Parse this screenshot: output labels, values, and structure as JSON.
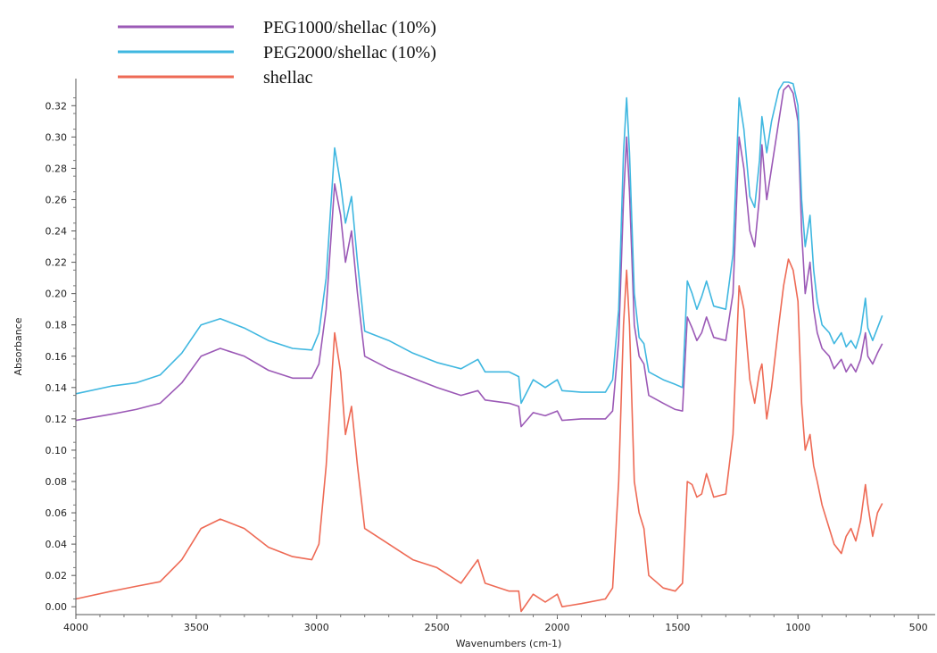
{
  "chart_data": {
    "type": "line",
    "xlabel": "Wavenumbers (cm-1)",
    "ylabel": "Absorbance",
    "xlim": [
      4000,
      430
    ],
    "ylim": [
      -0.005,
      0.335
    ],
    "x_reversed": true,
    "grid": false,
    "legend_position": "top-left",
    "x_ticks": [
      4000,
      3500,
      3000,
      2500,
      2000,
      1500,
      1000,
      500
    ],
    "y_ticks": [
      0.0,
      0.02,
      0.04,
      0.06,
      0.08,
      0.1,
      0.12,
      0.14,
      0.16,
      0.18,
      0.2,
      0.22,
      0.24,
      0.26,
      0.28,
      0.3,
      0.32
    ],
    "series": [
      {
        "name": "PEG1000/shellac (10%)",
        "color": "#9b59b6",
        "points": [
          [
            4000,
            0.119
          ],
          [
            3850,
            0.123
          ],
          [
            3750,
            0.126
          ],
          [
            3650,
            0.13
          ],
          [
            3560,
            0.143
          ],
          [
            3480,
            0.16
          ],
          [
            3400,
            0.165
          ],
          [
            3300,
            0.16
          ],
          [
            3200,
            0.151
          ],
          [
            3100,
            0.146
          ],
          [
            3020,
            0.146
          ],
          [
            2990,
            0.155
          ],
          [
            2960,
            0.19
          ],
          [
            2925,
            0.27
          ],
          [
            2900,
            0.25
          ],
          [
            2880,
            0.22
          ],
          [
            2855,
            0.24
          ],
          [
            2830,
            0.2
          ],
          [
            2800,
            0.16
          ],
          [
            2700,
            0.152
          ],
          [
            2600,
            0.146
          ],
          [
            2500,
            0.14
          ],
          [
            2400,
            0.135
          ],
          [
            2330,
            0.138
          ],
          [
            2300,
            0.132
          ],
          [
            2200,
            0.13
          ],
          [
            2160,
            0.128
          ],
          [
            2150,
            0.115
          ],
          [
            2100,
            0.124
          ],
          [
            2050,
            0.122
          ],
          [
            2000,
            0.125
          ],
          [
            1980,
            0.119
          ],
          [
            1900,
            0.12
          ],
          [
            1800,
            0.12
          ],
          [
            1770,
            0.125
          ],
          [
            1745,
            0.17
          ],
          [
            1725,
            0.26
          ],
          [
            1712,
            0.3
          ],
          [
            1700,
            0.265
          ],
          [
            1680,
            0.18
          ],
          [
            1660,
            0.16
          ],
          [
            1640,
            0.155
          ],
          [
            1620,
            0.135
          ],
          [
            1560,
            0.13
          ],
          [
            1510,
            0.126
          ],
          [
            1480,
            0.125
          ],
          [
            1460,
            0.185
          ],
          [
            1440,
            0.178
          ],
          [
            1420,
            0.17
          ],
          [
            1400,
            0.175
          ],
          [
            1380,
            0.185
          ],
          [
            1350,
            0.172
          ],
          [
            1300,
            0.17
          ],
          [
            1270,
            0.2
          ],
          [
            1245,
            0.3
          ],
          [
            1225,
            0.28
          ],
          [
            1200,
            0.24
          ],
          [
            1180,
            0.23
          ],
          [
            1160,
            0.262
          ],
          [
            1150,
            0.295
          ],
          [
            1130,
            0.26
          ],
          [
            1110,
            0.28
          ],
          [
            1080,
            0.31
          ],
          [
            1060,
            0.33
          ],
          [
            1040,
            0.333
          ],
          [
            1020,
            0.328
          ],
          [
            1000,
            0.31
          ],
          [
            985,
            0.24
          ],
          [
            970,
            0.2
          ],
          [
            950,
            0.22
          ],
          [
            935,
            0.19
          ],
          [
            920,
            0.175
          ],
          [
            900,
            0.165
          ],
          [
            870,
            0.16
          ],
          [
            850,
            0.152
          ],
          [
            820,
            0.158
          ],
          [
            800,
            0.15
          ],
          [
            780,
            0.155
          ],
          [
            760,
            0.15
          ],
          [
            740,
            0.158
          ],
          [
            720,
            0.175
          ],
          [
            710,
            0.16
          ],
          [
            690,
            0.155
          ],
          [
            670,
            0.162
          ],
          [
            650,
            0.168
          ]
        ]
      },
      {
        "name": "PEG2000/shellac (10%)",
        "color": "#3fb7e0",
        "points": [
          [
            4000,
            0.136
          ],
          [
            3850,
            0.141
          ],
          [
            3750,
            0.143
          ],
          [
            3650,
            0.148
          ],
          [
            3560,
            0.162
          ],
          [
            3480,
            0.18
          ],
          [
            3400,
            0.184
          ],
          [
            3300,
            0.178
          ],
          [
            3200,
            0.17
          ],
          [
            3100,
            0.165
          ],
          [
            3020,
            0.164
          ],
          [
            2990,
            0.175
          ],
          [
            2960,
            0.21
          ],
          [
            2925,
            0.293
          ],
          [
            2900,
            0.27
          ],
          [
            2880,
            0.245
          ],
          [
            2855,
            0.262
          ],
          [
            2830,
            0.22
          ],
          [
            2800,
            0.176
          ],
          [
            2700,
            0.17
          ],
          [
            2600,
            0.162
          ],
          [
            2500,
            0.156
          ],
          [
            2400,
            0.152
          ],
          [
            2330,
            0.158
          ],
          [
            2300,
            0.15
          ],
          [
            2200,
            0.15
          ],
          [
            2160,
            0.147
          ],
          [
            2150,
            0.13
          ],
          [
            2100,
            0.145
          ],
          [
            2050,
            0.14
          ],
          [
            2000,
            0.145
          ],
          [
            1980,
            0.138
          ],
          [
            1900,
            0.137
          ],
          [
            1800,
            0.137
          ],
          [
            1770,
            0.145
          ],
          [
            1745,
            0.19
          ],
          [
            1725,
            0.29
          ],
          [
            1712,
            0.325
          ],
          [
            1700,
            0.29
          ],
          [
            1680,
            0.2
          ],
          [
            1660,
            0.172
          ],
          [
            1640,
            0.168
          ],
          [
            1620,
            0.15
          ],
          [
            1560,
            0.145
          ],
          [
            1510,
            0.142
          ],
          [
            1480,
            0.14
          ],
          [
            1460,
            0.208
          ],
          [
            1440,
            0.2
          ],
          [
            1420,
            0.19
          ],
          [
            1400,
            0.198
          ],
          [
            1380,
            0.208
          ],
          [
            1350,
            0.192
          ],
          [
            1300,
            0.19
          ],
          [
            1270,
            0.225
          ],
          [
            1245,
            0.325
          ],
          [
            1225,
            0.305
          ],
          [
            1200,
            0.262
          ],
          [
            1180,
            0.255
          ],
          [
            1160,
            0.285
          ],
          [
            1150,
            0.313
          ],
          [
            1130,
            0.29
          ],
          [
            1110,
            0.31
          ],
          [
            1080,
            0.33
          ],
          [
            1060,
            0.335
          ],
          [
            1040,
            0.335
          ],
          [
            1020,
            0.334
          ],
          [
            1000,
            0.32
          ],
          [
            985,
            0.26
          ],
          [
            970,
            0.23
          ],
          [
            950,
            0.25
          ],
          [
            935,
            0.215
          ],
          [
            920,
            0.195
          ],
          [
            900,
            0.18
          ],
          [
            870,
            0.175
          ],
          [
            850,
            0.168
          ],
          [
            820,
            0.175
          ],
          [
            800,
            0.166
          ],
          [
            780,
            0.17
          ],
          [
            760,
            0.165
          ],
          [
            740,
            0.175
          ],
          [
            720,
            0.197
          ],
          [
            710,
            0.178
          ],
          [
            690,
            0.17
          ],
          [
            670,
            0.178
          ],
          [
            650,
            0.186
          ]
        ]
      },
      {
        "name": "shellac",
        "color": "#ee6a55",
        "points": [
          [
            4000,
            0.005
          ],
          [
            3850,
            0.01
          ],
          [
            3750,
            0.013
          ],
          [
            3650,
            0.016
          ],
          [
            3560,
            0.03
          ],
          [
            3480,
            0.05
          ],
          [
            3400,
            0.056
          ],
          [
            3300,
            0.05
          ],
          [
            3200,
            0.038
          ],
          [
            3100,
            0.032
          ],
          [
            3020,
            0.03
          ],
          [
            2990,
            0.04
          ],
          [
            2960,
            0.09
          ],
          [
            2925,
            0.175
          ],
          [
            2900,
            0.15
          ],
          [
            2880,
            0.11
          ],
          [
            2855,
            0.128
          ],
          [
            2830,
            0.09
          ],
          [
            2800,
            0.05
          ],
          [
            2700,
            0.04
          ],
          [
            2600,
            0.03
          ],
          [
            2500,
            0.025
          ],
          [
            2400,
            0.015
          ],
          [
            2330,
            0.03
          ],
          [
            2300,
            0.015
          ],
          [
            2200,
            0.01
          ],
          [
            2160,
            0.01
          ],
          [
            2150,
            -0.003
          ],
          [
            2100,
            0.008
          ],
          [
            2050,
            0.003
          ],
          [
            2000,
            0.008
          ],
          [
            1980,
            0.0
          ],
          [
            1900,
            0.002
          ],
          [
            1800,
            0.005
          ],
          [
            1770,
            0.012
          ],
          [
            1745,
            0.08
          ],
          [
            1725,
            0.18
          ],
          [
            1712,
            0.215
          ],
          [
            1700,
            0.18
          ],
          [
            1680,
            0.08
          ],
          [
            1660,
            0.06
          ],
          [
            1640,
            0.05
          ],
          [
            1620,
            0.02
          ],
          [
            1560,
            0.012
          ],
          [
            1510,
            0.01
          ],
          [
            1480,
            0.015
          ],
          [
            1460,
            0.08
          ],
          [
            1440,
            0.078
          ],
          [
            1420,
            0.07
          ],
          [
            1400,
            0.072
          ],
          [
            1380,
            0.085
          ],
          [
            1350,
            0.07
          ],
          [
            1300,
            0.072
          ],
          [
            1270,
            0.11
          ],
          [
            1245,
            0.205
          ],
          [
            1225,
            0.19
          ],
          [
            1200,
            0.145
          ],
          [
            1180,
            0.13
          ],
          [
            1160,
            0.15
          ],
          [
            1150,
            0.155
          ],
          [
            1130,
            0.12
          ],
          [
            1110,
            0.14
          ],
          [
            1080,
            0.18
          ],
          [
            1060,
            0.205
          ],
          [
            1040,
            0.222
          ],
          [
            1020,
            0.215
          ],
          [
            1000,
            0.195
          ],
          [
            985,
            0.13
          ],
          [
            970,
            0.1
          ],
          [
            950,
            0.11
          ],
          [
            935,
            0.09
          ],
          [
            920,
            0.08
          ],
          [
            900,
            0.065
          ],
          [
            870,
            0.05
          ],
          [
            850,
            0.04
          ],
          [
            820,
            0.034
          ],
          [
            800,
            0.045
          ],
          [
            780,
            0.05
          ],
          [
            760,
            0.042
          ],
          [
            740,
            0.055
          ],
          [
            720,
            0.078
          ],
          [
            710,
            0.065
          ],
          [
            690,
            0.045
          ],
          [
            670,
            0.06
          ],
          [
            650,
            0.066
          ]
        ]
      }
    ]
  }
}
